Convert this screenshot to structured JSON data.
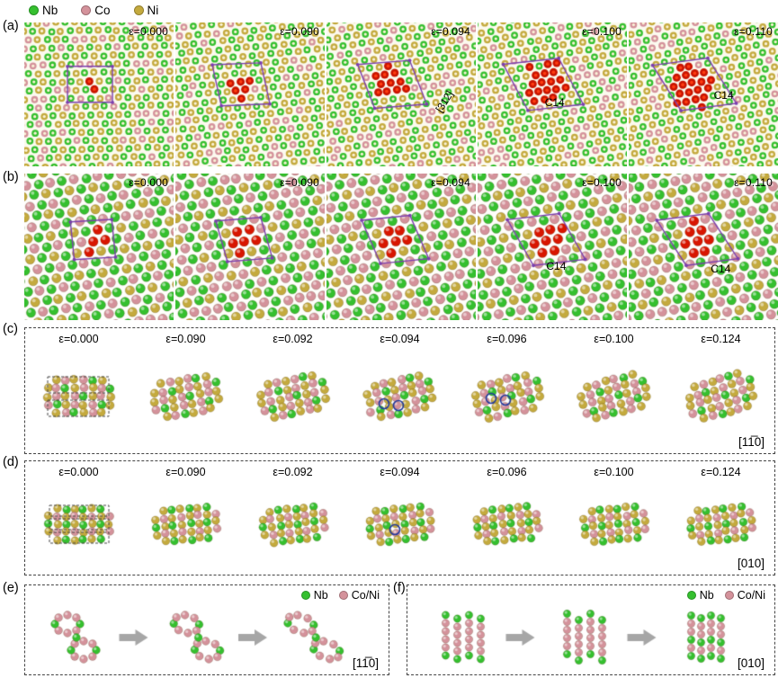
{
  "colors": {
    "nb": "#35c02f",
    "co": "#d4929b",
    "ni": "#c4aa3e",
    "defect": "#d81600",
    "box": "#7b3fae",
    "arrow": "#a6a6a6",
    "blue_circle": "#223a9e"
  },
  "legend": {
    "items": [
      {
        "name": "Nb",
        "color_key": "nb"
      },
      {
        "name": "Co",
        "color_key": "co"
      },
      {
        "name": "Ni",
        "color_key": "ni"
      }
    ]
  },
  "rows": {
    "a": {
      "label": "(a)",
      "panels": [
        {
          "epsilon": "ε=0.000"
        },
        {
          "epsilon": "ε=0.090"
        },
        {
          "epsilon": "ε=0.094",
          "annotation": "[312]"
        },
        {
          "epsilon": "ε=0.100",
          "phase": "C14"
        },
        {
          "epsilon": "ε=0.110",
          "phase": "C14"
        }
      ]
    },
    "b": {
      "label": "(b)",
      "panels": [
        {
          "epsilon": "ε=0.000"
        },
        {
          "epsilon": "ε=0.090"
        },
        {
          "epsilon": "ε=0.094"
        },
        {
          "epsilon": "ε=0.100",
          "phase": "C14"
        },
        {
          "epsilon": "ε=0.110",
          "phase": "C14"
        }
      ]
    },
    "c": {
      "label": "(c)",
      "epsilons": [
        "ε=0.000",
        "ε=0.090",
        "ε=0.092",
        "ε=0.094",
        "ε=0.096",
        "ε=0.100",
        "ε=0.124"
      ],
      "direction": "[11̅0]"
    },
    "d": {
      "label": "(d)",
      "epsilons": [
        "ε=0.000",
        "ε=0.090",
        "ε=0.092",
        "ε=0.094",
        "ε=0.096",
        "ε=0.100",
        "ε=0.124"
      ],
      "direction": "[010]"
    },
    "e": {
      "label": "(e)",
      "legend": [
        {
          "name": "Nb",
          "color_key": "nb"
        },
        {
          "name": "Co/Ni",
          "color_key": "co"
        }
      ],
      "direction": "[11̅0]"
    },
    "f": {
      "label": "(f)",
      "legend": [
        {
          "name": "Nb",
          "color_key": "nb"
        },
        {
          "name": "Co/Ni",
          "color_key": "co"
        }
      ],
      "direction": "[010]"
    }
  }
}
